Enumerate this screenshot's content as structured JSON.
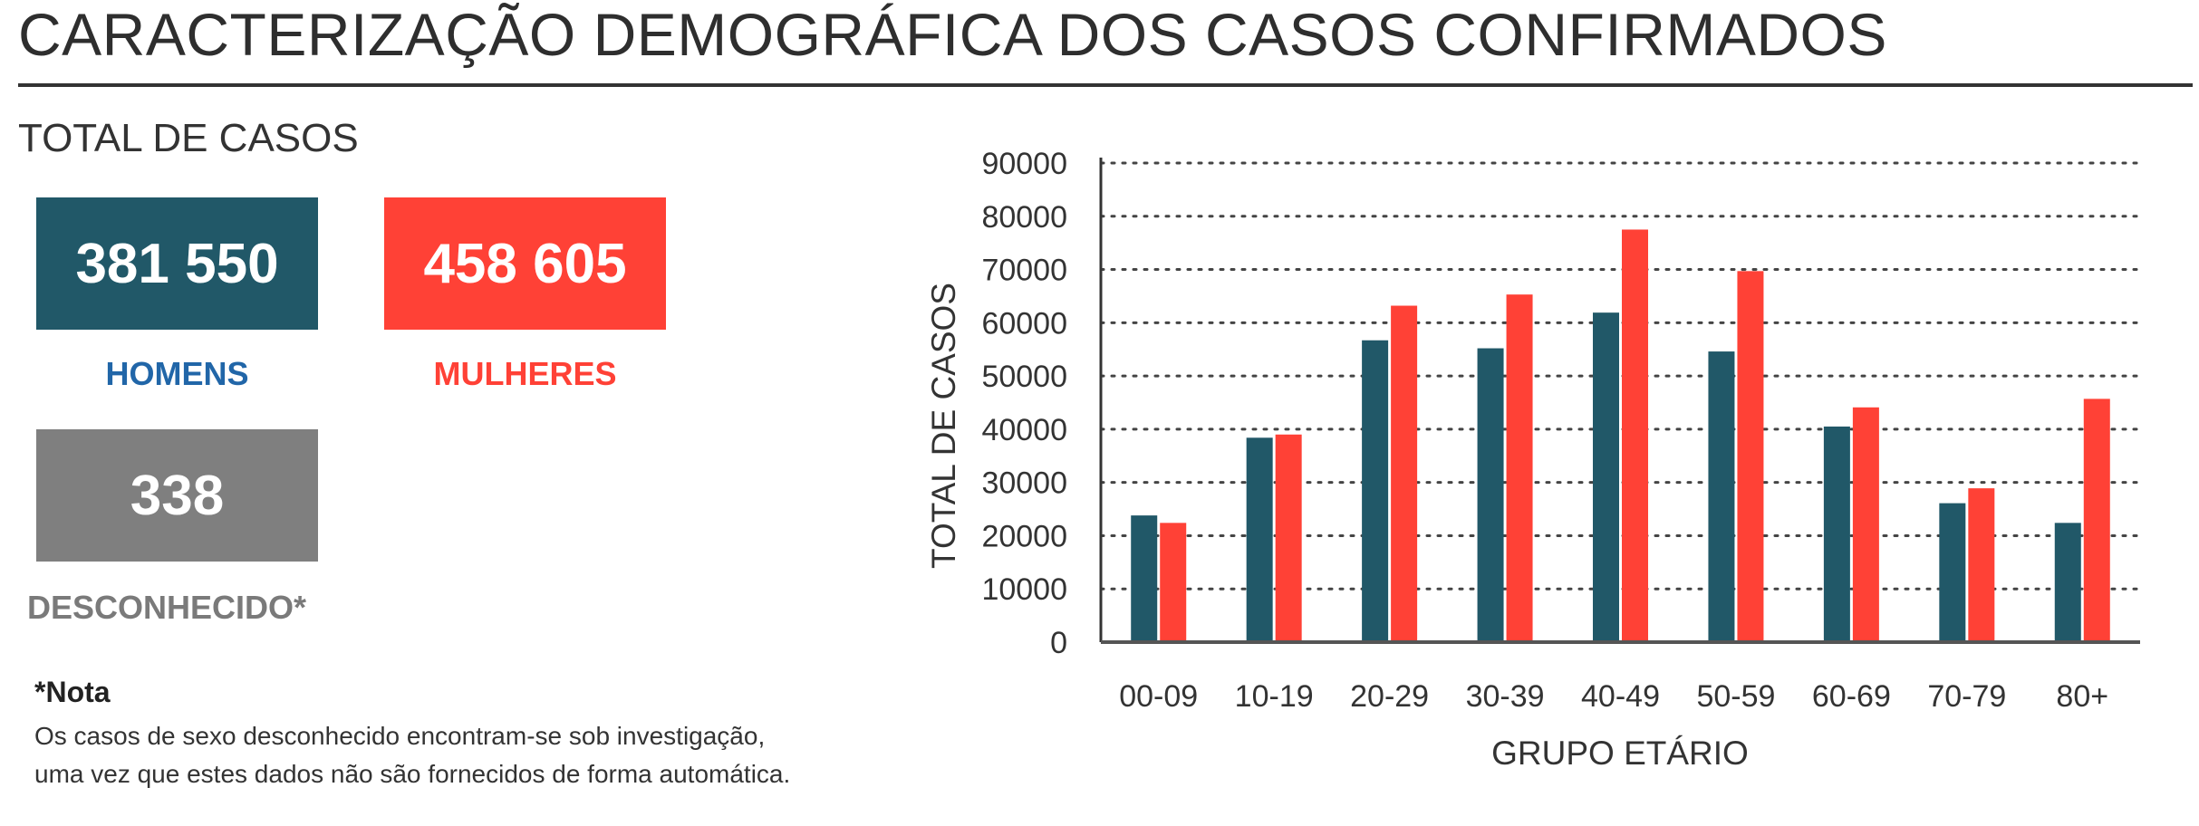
{
  "header": {
    "title": "CARACTERIZAÇÃO DEMOGRÁFICA DOS CASOS CONFIRMADOS"
  },
  "totals": {
    "section_title": "TOTAL DE CASOS",
    "men": {
      "value": "381 550",
      "label": "HOMENS"
    },
    "women": {
      "value": "458 605",
      "label": "MULHERES"
    },
    "unknown": {
      "value": "338",
      "label": "DESCONHECIDO*"
    }
  },
  "note": {
    "title": "*Nota",
    "line1": "Os casos de sexo desconhecido encontram-se sob investigação,",
    "line2": "uma vez que estes dados não são fornecidos de forma automática."
  },
  "colors": {
    "men": "#215868",
    "women": "#ff4136",
    "unknown": "#7f7f7f",
    "men_label": "#2166a8"
  },
  "chart_data": {
    "type": "bar",
    "title": "",
    "xlabel": "GRUPO ETÁRIO",
    "ylabel": "TOTAL DE CASOS",
    "categories": [
      "00-09",
      "10-19",
      "20-29",
      "30-39",
      "40-49",
      "50-59",
      "60-69",
      "70-79",
      "80+"
    ],
    "series": [
      {
        "values": [
          23800,
          38400,
          56700,
          55200,
          61900,
          54600,
          40500,
          26100,
          22400
        ],
        "color": "#215868"
      },
      {
        "values": [
          22400,
          39000,
          63200,
          65300,
          77500,
          69700,
          44100,
          28900,
          45700
        ],
        "color": "#ff4136"
      }
    ],
    "ylim": [
      0,
      90000
    ],
    "yticks": [
      0,
      10000,
      20000,
      30000,
      40000,
      50000,
      60000,
      70000,
      80000,
      90000
    ],
    "ytick_labels": [
      "0",
      "10000",
      "20000",
      "30000",
      "40000",
      "50000",
      "60000",
      "70000",
      "80000",
      "90000"
    ],
    "grid": "horizontal-dotted",
    "legend": "none"
  }
}
